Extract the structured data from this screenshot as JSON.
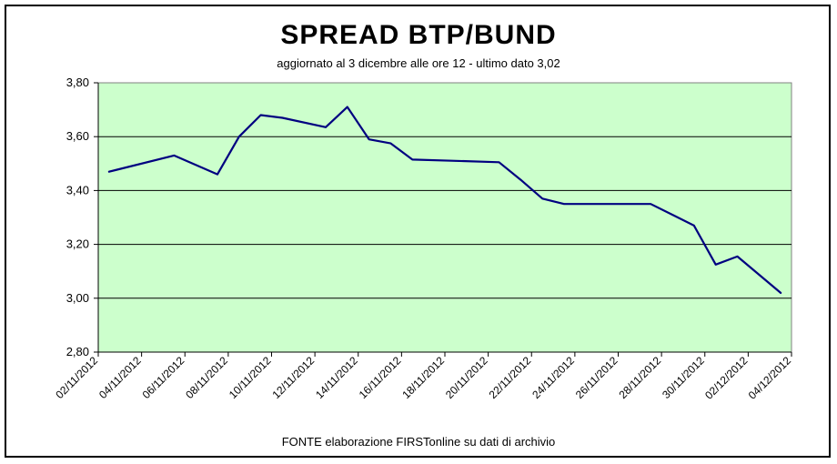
{
  "chart_data": {
    "type": "line",
    "title": "SPREAD BTP/BUND",
    "subtitle": "aggiornato al 3 dicembre alle ore 12 - ultimo dato 3,02",
    "source_note": "FONTE elaborazione FIRSTonline su dati di archivio",
    "xlabel": "",
    "ylabel": "",
    "ylim": [
      2.8,
      3.8
    ],
    "yticks": [
      {
        "value": 2.8,
        "label": "2,80"
      },
      {
        "value": 3.0,
        "label": "3,00"
      },
      {
        "value": 3.2,
        "label": "3,20"
      },
      {
        "value": 3.4,
        "label": "3,40"
      },
      {
        "value": 3.6,
        "label": "3,60"
      },
      {
        "value": 3.8,
        "label": "3,80"
      }
    ],
    "xlim": [
      0,
      32
    ],
    "xticks": [
      {
        "x": 0,
        "label": "02/11/2012"
      },
      {
        "x": 2,
        "label": "04/11/2012"
      },
      {
        "x": 4,
        "label": "06/11/2012"
      },
      {
        "x": 6,
        "label": "08/11/2012"
      },
      {
        "x": 8,
        "label": "10/11/2012"
      },
      {
        "x": 10,
        "label": "12/11/2012"
      },
      {
        "x": 12,
        "label": "14/11/2012"
      },
      {
        "x": 14,
        "label": "16/11/2012"
      },
      {
        "x": 16,
        "label": "18/11/2012"
      },
      {
        "x": 18,
        "label": "20/11/2012"
      },
      {
        "x": 20,
        "label": "22/11/2012"
      },
      {
        "x": 22,
        "label": "24/11/2012"
      },
      {
        "x": 24,
        "label": "26/11/2012"
      },
      {
        "x": 26,
        "label": "28/11/2012"
      },
      {
        "x": 28,
        "label": "30/11/2012"
      },
      {
        "x": 30,
        "label": "02/12/2012"
      },
      {
        "x": 32,
        "label": "04/12/2012"
      }
    ],
    "grid": {
      "horizontal": true,
      "vertical": false
    },
    "legend": "none",
    "series": [
      {
        "color": "#000080",
        "points": [
          {
            "x": 0.5,
            "y": 3.47
          },
          {
            "x": 3.5,
            "y": 3.53
          },
          {
            "x": 5.5,
            "y": 3.46
          },
          {
            "x": 6.5,
            "y": 3.6
          },
          {
            "x": 7.5,
            "y": 3.68
          },
          {
            "x": 8.5,
            "y": 3.67
          },
          {
            "x": 10.5,
            "y": 3.635
          },
          {
            "x": 11.5,
            "y": 3.71
          },
          {
            "x": 12.5,
            "y": 3.59
          },
          {
            "x": 13.5,
            "y": 3.575
          },
          {
            "x": 14.5,
            "y": 3.515
          },
          {
            "x": 16.5,
            "y": 3.51
          },
          {
            "x": 18.5,
            "y": 3.505
          },
          {
            "x": 19.5,
            "y": 3.44
          },
          {
            "x": 20.5,
            "y": 3.37
          },
          {
            "x": 21.5,
            "y": 3.35
          },
          {
            "x": 25.5,
            "y": 3.35
          },
          {
            "x": 26.5,
            "y": 3.31
          },
          {
            "x": 27.5,
            "y": 3.27
          },
          {
            "x": 28.5,
            "y": 3.125
          },
          {
            "x": 29.5,
            "y": 3.155
          },
          {
            "x": 31.5,
            "y": 3.02
          }
        ]
      }
    ]
  }
}
